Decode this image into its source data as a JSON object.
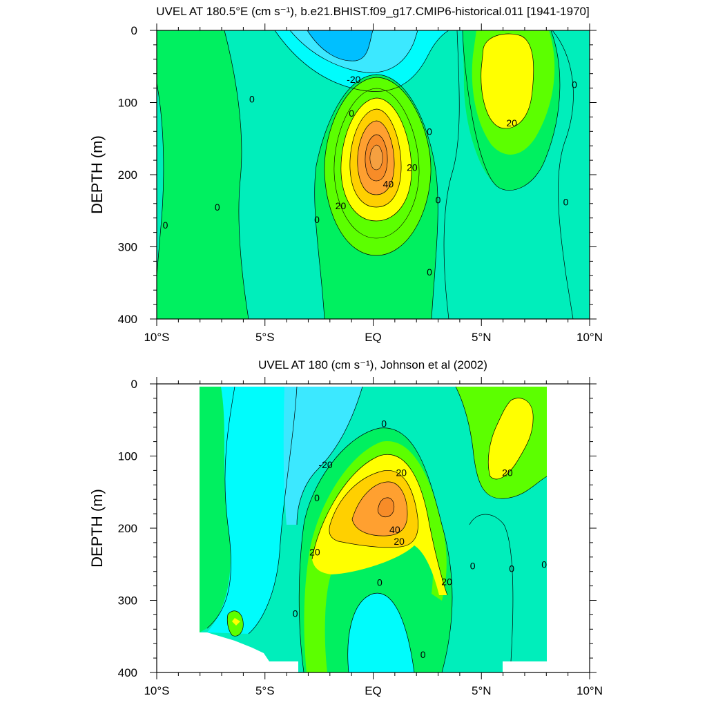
{
  "chart_data": [
    {
      "type": "contour",
      "title": "UVEL AT 180.5°E (cm s⁻¹), b.e21.BHIST.f09_g17.CMIP6-historical.011 [1941-1970]",
      "ylabel": "DEPTH (m)",
      "xlabel": "",
      "xlim": [
        -10,
        10
      ],
      "ylim": [
        400,
        0
      ],
      "x_ticks": [
        -10,
        -5,
        0,
        5,
        10
      ],
      "x_tick_labels": [
        "10°S",
        "5°S",
        "EQ",
        "5°N",
        "10°N"
      ],
      "y_ticks": [
        0,
        100,
        200,
        300,
        400
      ],
      "y_tick_labels": [
        "0",
        "100",
        "200",
        "300",
        "400"
      ],
      "contour_interval": 10,
      "contour_labels": [
        {
          "text": "-20",
          "x": -0.9,
          "y": 68
        },
        {
          "text": "0",
          "x": -5.6,
          "y": 95
        },
        {
          "text": "0",
          "x": -1.0,
          "y": 115
        },
        {
          "text": "0",
          "x": 2.6,
          "y": 140
        },
        {
          "text": "0",
          "x": 9.3,
          "y": 75
        },
        {
          "text": "20",
          "x": 6.4,
          "y": 128
        },
        {
          "text": "20",
          "x": 1.8,
          "y": 190
        },
        {
          "text": "40",
          "x": 0.7,
          "y": 213
        },
        {
          "text": "20",
          "x": -1.5,
          "y": 243
        },
        {
          "text": "0",
          "x": -9.6,
          "y": 270
        },
        {
          "text": "0",
          "x": -7.2,
          "y": 245
        },
        {
          "text": "0",
          "x": -2.6,
          "y": 262
        },
        {
          "text": "0",
          "x": 3.0,
          "y": 235
        },
        {
          "text": "0",
          "x": 8.9,
          "y": 238
        },
        {
          "text": "0",
          "x": 2.6,
          "y": 335
        }
      ]
    },
    {
      "type": "contour",
      "title": "UVEL AT 180 (cm s⁻¹), Johnson et al (2002)",
      "ylabel": "DEPTH (m)",
      "xlabel": "",
      "xlim": [
        -10,
        10
      ],
      "ylim": [
        400,
        0
      ],
      "x_ticks": [
        -10,
        -5,
        0,
        5,
        10
      ],
      "x_tick_labels": [
        "10°S",
        "5°S",
        "EQ",
        "5°N",
        "10°N"
      ],
      "y_ticks": [
        0,
        100,
        200,
        300,
        400
      ],
      "y_tick_labels": [
        "0",
        "100",
        "200",
        "300",
        "400"
      ],
      "contour_interval": 10,
      "contour_labels": [
        {
          "text": "0",
          "x": 0.5,
          "y": 55
        },
        {
          "text": "-20",
          "x": -2.2,
          "y": 112
        },
        {
          "text": "20",
          "x": 1.3,
          "y": 123
        },
        {
          "text": "20",
          "x": 6.2,
          "y": 123
        },
        {
          "text": "0",
          "x": -2.6,
          "y": 158
        },
        {
          "text": "40",
          "x": 1.0,
          "y": 202
        },
        {
          "text": "20",
          "x": 1.2,
          "y": 218
        },
        {
          "text": "20",
          "x": -2.7,
          "y": 233
        },
        {
          "text": "20",
          "x": 3.4,
          "y": 274
        },
        {
          "text": "0",
          "x": 4.6,
          "y": 252
        },
        {
          "text": "0",
          "x": 6.4,
          "y": 256
        },
        {
          "text": "0",
          "x": 7.9,
          "y": 250
        },
        {
          "text": "0",
          "x": 0.3,
          "y": 275
        },
        {
          "text": "0",
          "x": -3.6,
          "y": 318
        },
        {
          "text": "0",
          "x": 2.3,
          "y": 375
        }
      ]
    }
  ],
  "colors": {
    "lt_minus20": "#00bfff",
    "minus20_minus10": "#3ce8ff",
    "minus10_0": "#00fcfc",
    "0_10": "#00eebb",
    "10_20": "#00f060",
    "20_30": "#5cff00",
    "30_40": "#ffff00",
    "40_50": "#ffd000",
    "50_60": "#ffa030",
    "gt_60": "#f78c28"
  }
}
